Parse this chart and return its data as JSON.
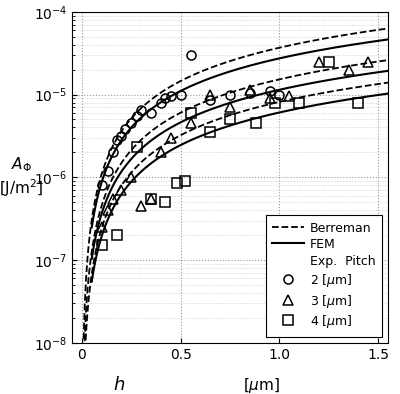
{
  "figsize": [
    4.0,
    3.94
  ],
  "dpi": 100,
  "xlim": [
    -0.05,
    1.55
  ],
  "ylim": [
    1e-08,
    0.0001
  ],
  "xticks": [
    0.0,
    0.5,
    1.0,
    1.5
  ],
  "pitches": [
    2,
    3,
    4
  ],
  "berreman_C": [
    0.00014,
    5.8e-05,
    3.1e-05
  ],
  "berreman_a": [
    2.8,
    2.8,
    2.8
  ],
  "berreman_xstart": [
    0.0,
    0.0,
    0.0
  ],
  "fem_C": [
    0.000115,
    4.8e-05,
    2.55e-05
  ],
  "fem_a": [
    3.2,
    3.2,
    3.2
  ],
  "fem_xstart": [
    0.05,
    0.05,
    0.05
  ],
  "exp_circles_x": [
    0.1,
    0.13,
    0.16,
    0.18,
    0.2,
    0.22,
    0.25,
    0.28,
    0.3,
    0.35,
    0.4,
    0.42,
    0.45,
    0.5,
    0.55,
    0.65,
    0.75,
    0.85,
    0.95,
    1.0
  ],
  "exp_circles_y": [
    8e-07,
    1.2e-06,
    2e-06,
    2.8e-06,
    3.2e-06,
    3.8e-06,
    4.5e-06,
    5.5e-06,
    6.5e-06,
    6e-06,
    8e-06,
    9e-06,
    9.5e-06,
    1e-05,
    3e-05,
    8.5e-06,
    1e-05,
    1.05e-05,
    1.1e-05,
    1e-05
  ],
  "exp_triangles_x": [
    0.1,
    0.13,
    0.16,
    0.2,
    0.25,
    0.3,
    0.35,
    0.4,
    0.45,
    0.55,
    0.65,
    0.75,
    0.85,
    0.95,
    1.05,
    1.2,
    1.35,
    1.45
  ],
  "exp_triangles_y": [
    2.5e-07,
    4e-07,
    5.5e-07,
    7e-07,
    1e-06,
    4.5e-07,
    5.5e-07,
    2e-06,
    3e-06,
    4.5e-06,
    1e-05,
    7e-06,
    1.15e-05,
    9e-06,
    9.5e-06,
    2.5e-05,
    2e-05,
    2.5e-05
  ],
  "exp_squares_x": [
    0.1,
    0.18,
    0.28,
    0.35,
    0.42,
    0.48,
    0.52,
    0.55,
    0.65,
    0.75,
    0.88,
    0.98,
    1.1,
    1.25,
    1.4
  ],
  "exp_squares_y": [
    1.5e-07,
    2e-07,
    2.3e-06,
    5.5e-07,
    5e-07,
    8.5e-07,
    9e-07,
    6e-06,
    3.5e-06,
    5e-06,
    4.5e-06,
    8e-06,
    8e-06,
    2.5e-05,
    8e-06
  ],
  "legend_loc": "lower right",
  "grid_color": "#aaaaaa",
  "line_color": "black"
}
